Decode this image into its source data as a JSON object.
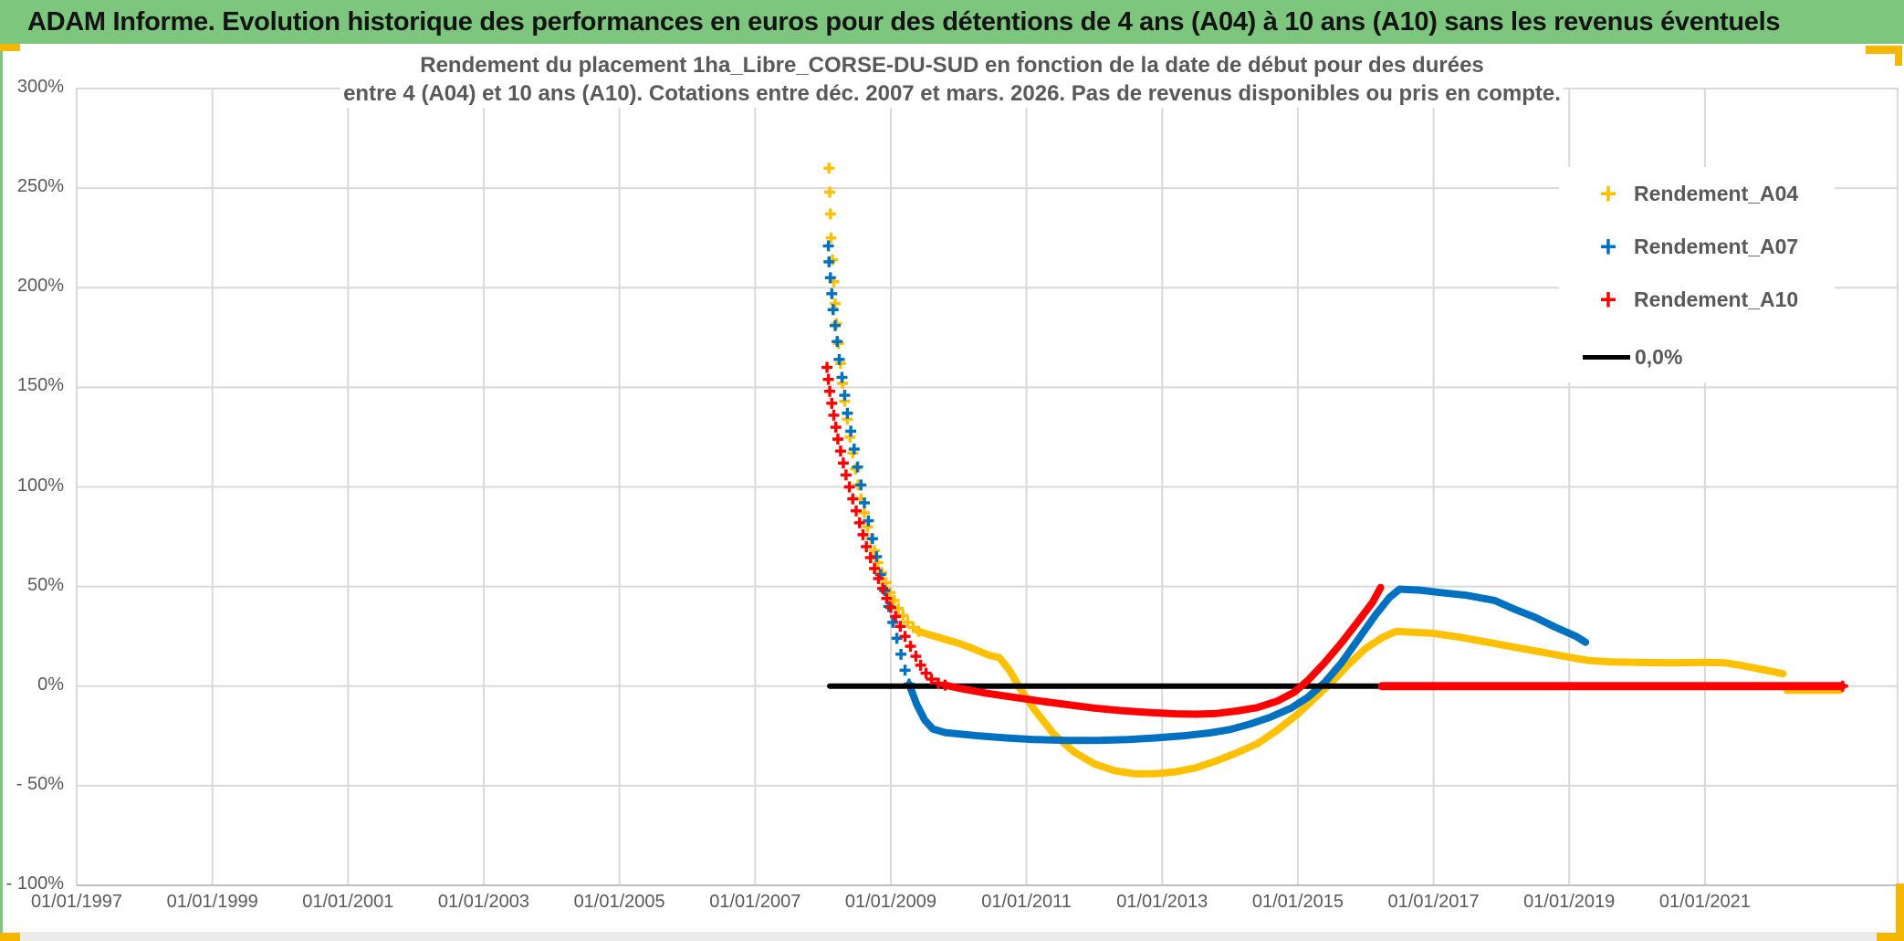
{
  "page": {
    "accent_gold": "#f3b700",
    "accent_green": "#7dc67d",
    "strip_gray": "#ececec"
  },
  "header": {
    "title": "ADAM Informe. Evolution historique des performances en euros pour des détentions de 4 ans (A04) à 10 ans (A10) sans les revenus éventuels",
    "bg": "#7dc67d"
  },
  "chart_data": {
    "type": "scatter",
    "title_line1": "Rendement du placement 1ha_Libre_CORSE-DU-SUD en fonction de la date de début pour des durées",
    "title_line2": "entre 4 (A04) et 10 ans (A10). Cotations entre déc. 2007 et mars. 2026. Pas de revenus disponibles ou pris en compte.",
    "grid": true,
    "xlim_years": [
      1997,
      2023.84
    ],
    "ylim": [
      -100,
      300
    ],
    "x_axis": {
      "tick_years": [
        1997,
        1999,
        2001,
        2003,
        2005,
        2007,
        2009,
        2011,
        2013,
        2015,
        2017,
        2019,
        2021
      ],
      "tick_labels": [
        "01/01/1997",
        "01/01/1999",
        "01/01/2001",
        "01/01/2003",
        "01/01/2005",
        "01/01/2007",
        "01/01/2009",
        "01/01/2011",
        "01/01/2013",
        "01/01/2015",
        "01/01/2017",
        "01/01/2019",
        "01/01/2021"
      ]
    },
    "y_axis": {
      "ticks": [
        {
          "value": 300,
          "label": "300%"
        },
        {
          "value": 250,
          "label": "250%"
        },
        {
          "value": 200,
          "label": "200%"
        },
        {
          "value": 150,
          "label": "150%"
        },
        {
          "value": 100,
          "label": "100%"
        },
        {
          "value": 50,
          "label": "50%"
        },
        {
          "value": 0,
          "label": "0%"
        },
        {
          "value": -50,
          "label": "- 50%"
        },
        {
          "value": -100,
          "label": "- 100%"
        }
      ]
    },
    "legend": [
      {
        "label": "Rendement_A04",
        "color": "#FFC000",
        "marker": "plus"
      },
      {
        "label": "Rendement_A07",
        "color": "#0070C0",
        "marker": "plus"
      },
      {
        "label": "Rendement_A10",
        "color": "#FF0000",
        "marker": "plus"
      },
      {
        "label": "0,0%",
        "color": "#000000",
        "marker": "line"
      }
    ],
    "series": [
      {
        "name": "Rendement_A04",
        "color": "#FFC000",
        "line_width": 8,
        "marker_points": [
          [
            2008.09,
            260
          ],
          [
            2008.1,
            248
          ],
          [
            2008.11,
            237
          ],
          [
            2008.12,
            225
          ],
          [
            2008.14,
            214
          ],
          [
            2008.16,
            203
          ],
          [
            2008.18,
            192
          ],
          [
            2008.2,
            182
          ],
          [
            2008.23,
            172
          ],
          [
            2008.26,
            162
          ],
          [
            2008.29,
            152
          ],
          [
            2008.32,
            143
          ],
          [
            2008.36,
            134
          ],
          [
            2008.4,
            125
          ],
          [
            2008.44,
            117
          ],
          [
            2008.48,
            109
          ],
          [
            2008.52,
            101
          ],
          [
            2008.56,
            94
          ],
          [
            2008.61,
            87
          ],
          [
            2008.66,
            80
          ],
          [
            2008.71,
            74
          ],
          [
            2008.76,
            68
          ],
          [
            2008.81,
            62
          ],
          [
            2008.87,
            57
          ],
          [
            2008.93,
            52
          ],
          [
            2008.99,
            47
          ],
          [
            2009.05,
            43
          ],
          [
            2009.11,
            39
          ],
          [
            2009.18,
            35.5
          ],
          [
            2009.25,
            32
          ],
          [
            2009.33,
            29.5
          ],
          [
            2009.41,
            27.5
          ]
        ],
        "line_points": [
          [
            2009.41,
            27.5
          ],
          [
            2009.6,
            25.5
          ],
          [
            2009.8,
            23.5
          ],
          [
            2010.0,
            21.5
          ],
          [
            2010.2,
            19
          ],
          [
            2010.45,
            15.5
          ],
          [
            2010.6,
            14.3
          ],
          [
            2010.75,
            8
          ],
          [
            2010.9,
            -1
          ],
          [
            2011.1,
            -11
          ],
          [
            2011.4,
            -24
          ],
          [
            2011.7,
            -33
          ],
          [
            2012.0,
            -39
          ],
          [
            2012.3,
            -42.5
          ],
          [
            2012.6,
            -44
          ],
          [
            2012.9,
            -44
          ],
          [
            2013.2,
            -43
          ],
          [
            2013.5,
            -41
          ],
          [
            2013.8,
            -37.5
          ],
          [
            2014.1,
            -33.5
          ],
          [
            2014.4,
            -29
          ],
          [
            2014.7,
            -22
          ],
          [
            2015.0,
            -14
          ],
          [
            2015.25,
            -6
          ],
          [
            2015.5,
            2
          ],
          [
            2015.75,
            11
          ],
          [
            2016.0,
            19
          ],
          [
            2016.25,
            24.5
          ],
          [
            2016.45,
            27.5
          ],
          [
            2016.7,
            27
          ],
          [
            2017.0,
            26.5
          ],
          [
            2017.4,
            24.5
          ],
          [
            2017.8,
            22
          ],
          [
            2018.2,
            19.5
          ],
          [
            2018.6,
            17
          ],
          [
            2019.0,
            14.5
          ],
          [
            2019.3,
            12.8
          ],
          [
            2019.6,
            12.2
          ],
          [
            2020.0,
            11.9
          ],
          [
            2020.5,
            11.7
          ],
          [
            2021.0,
            11.9
          ],
          [
            2021.3,
            11.7
          ],
          [
            2021.6,
            10
          ],
          [
            2021.9,
            8
          ],
          [
            2022.15,
            6.2
          ]
        ],
        "extra_segments": [
          [
            [
              2022.2,
              -2.5
            ],
            [
              2023.0,
              -2.5
            ]
          ]
        ],
        "extra_width": 6
      },
      {
        "name": "Rendement_A07",
        "color": "#0070C0",
        "line_width": 8,
        "marker_points": [
          [
            2008.08,
            221
          ],
          [
            2008.09,
            213
          ],
          [
            2008.11,
            205
          ],
          [
            2008.13,
            197
          ],
          [
            2008.15,
            189
          ],
          [
            2008.18,
            181
          ],
          [
            2008.21,
            173
          ],
          [
            2008.24,
            164
          ],
          [
            2008.28,
            155
          ],
          [
            2008.32,
            146
          ],
          [
            2008.36,
            137
          ],
          [
            2008.41,
            128
          ],
          [
            2008.46,
            119
          ],
          [
            2008.51,
            110
          ],
          [
            2008.56,
            101
          ],
          [
            2008.61,
            92
          ],
          [
            2008.67,
            83
          ],
          [
            2008.73,
            74
          ],
          [
            2008.79,
            65
          ],
          [
            2008.85,
            56
          ],
          [
            2008.91,
            48
          ],
          [
            2008.97,
            40
          ],
          [
            2009.03,
            32
          ],
          [
            2009.09,
            24
          ],
          [
            2009.15,
            16
          ],
          [
            2009.21,
            8
          ],
          [
            2009.27,
            1
          ]
        ],
        "line_points": [
          [
            2009.27,
            1
          ],
          [
            2009.38,
            -9
          ],
          [
            2009.5,
            -17
          ],
          [
            2009.62,
            -21.5
          ],
          [
            2009.8,
            -23.3
          ],
          [
            2010.0,
            -24
          ],
          [
            2010.3,
            -25
          ],
          [
            2010.7,
            -26
          ],
          [
            2011.1,
            -26.8
          ],
          [
            2011.6,
            -27.3
          ],
          [
            2012.1,
            -27.2
          ],
          [
            2012.5,
            -26.8
          ],
          [
            2012.9,
            -26
          ],
          [
            2013.3,
            -25
          ],
          [
            2013.7,
            -23.5
          ],
          [
            2014.0,
            -21.8
          ],
          [
            2014.3,
            -19
          ],
          [
            2014.6,
            -15.5
          ],
          [
            2014.9,
            -11
          ],
          [
            2015.15,
            -5.5
          ],
          [
            2015.4,
            2
          ],
          [
            2015.65,
            12
          ],
          [
            2015.9,
            24
          ],
          [
            2016.15,
            36
          ],
          [
            2016.35,
            44.5
          ],
          [
            2016.5,
            48.7
          ],
          [
            2016.8,
            48.2
          ],
          [
            2017.1,
            47
          ],
          [
            2017.5,
            45.5
          ],
          [
            2017.9,
            43
          ],
          [
            2018.2,
            38.5
          ],
          [
            2018.5,
            34.5
          ],
          [
            2018.8,
            29.5
          ],
          [
            2019.1,
            25
          ],
          [
            2019.24,
            22
          ]
        ]
      },
      {
        "name": "Zero_reference_0_0_pct",
        "color": "#000000",
        "line_width": 6,
        "line_points": [
          [
            2008.1,
            0
          ],
          [
            2023.0,
            0
          ]
        ]
      },
      {
        "name": "Rendement_A10",
        "color": "#FF0000",
        "line_width": 8,
        "marker_points": [
          [
            2008.06,
            160
          ],
          [
            2008.08,
            154
          ],
          [
            2008.1,
            148
          ],
          [
            2008.13,
            142
          ],
          [
            2008.16,
            136
          ],
          [
            2008.19,
            130
          ],
          [
            2008.22,
            124
          ],
          [
            2008.26,
            118
          ],
          [
            2008.3,
            112
          ],
          [
            2008.34,
            106
          ],
          [
            2008.39,
            100
          ],
          [
            2008.44,
            94
          ],
          [
            2008.49,
            88
          ],
          [
            2008.54,
            82
          ],
          [
            2008.59,
            76
          ],
          [
            2008.64,
            70
          ],
          [
            2008.7,
            64.5
          ],
          [
            2008.76,
            59
          ],
          [
            2008.82,
            54
          ],
          [
            2008.88,
            49
          ],
          [
            2008.94,
            44
          ],
          [
            2009.0,
            39.5
          ],
          [
            2009.07,
            35
          ],
          [
            2009.14,
            30
          ],
          [
            2009.21,
            25
          ],
          [
            2009.29,
            20
          ],
          [
            2009.37,
            15
          ],
          [
            2009.44,
            10.5
          ],
          [
            2009.52,
            6.5
          ],
          [
            2009.6,
            3.5
          ],
          [
            2009.7,
            1.5
          ],
          [
            2009.8,
            0.5
          ],
          [
            2023.03,
            0
          ]
        ],
        "line_points": [
          [
            2009.8,
            0.5
          ],
          [
            2010.0,
            -1
          ],
          [
            2010.4,
            -3.5
          ],
          [
            2010.8,
            -5.5
          ],
          [
            2011.2,
            -7.5
          ],
          [
            2011.6,
            -9.3
          ],
          [
            2012.0,
            -11
          ],
          [
            2012.4,
            -12.3
          ],
          [
            2012.8,
            -13.2
          ],
          [
            2013.2,
            -13.9
          ],
          [
            2013.5,
            -14.1
          ],
          [
            2013.8,
            -13.7
          ],
          [
            2014.1,
            -12.5
          ],
          [
            2014.4,
            -10.8
          ],
          [
            2014.7,
            -7.5
          ],
          [
            2014.95,
            -3
          ],
          [
            2015.15,
            3
          ],
          [
            2015.4,
            12
          ],
          [
            2015.65,
            22
          ],
          [
            2015.9,
            33
          ],
          [
            2016.1,
            42
          ],
          [
            2016.22,
            49.5
          ]
        ],
        "extra_segments": [
          [
            [
              2016.24,
              0
            ],
            [
              2023.02,
              0
            ]
          ]
        ],
        "extra_width": 9
      }
    ]
  }
}
